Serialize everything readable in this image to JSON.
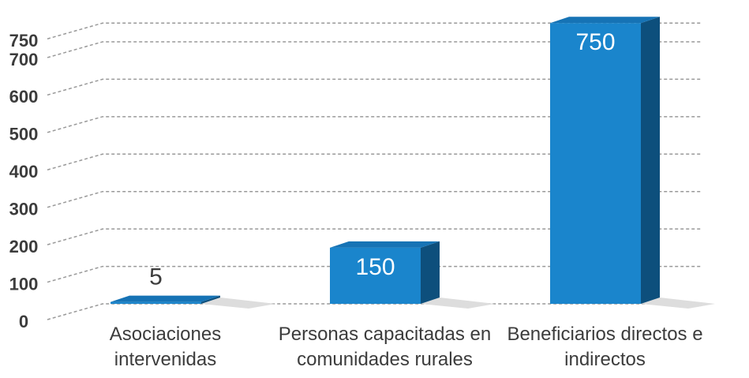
{
  "chart_data": {
    "type": "bar",
    "categories": [
      "Asociaciones intervenidas",
      "Personas capacitadas en comunidades rurales",
      "Beneficiarios directos e indirectos"
    ],
    "values": [
      5,
      150,
      750
    ],
    "color": "#1a85cc",
    "ylim": [
      0,
      780
    ],
    "yticks": [
      0,
      100,
      200,
      300,
      400,
      500,
      600,
      700,
      750
    ],
    "grid": true
  }
}
